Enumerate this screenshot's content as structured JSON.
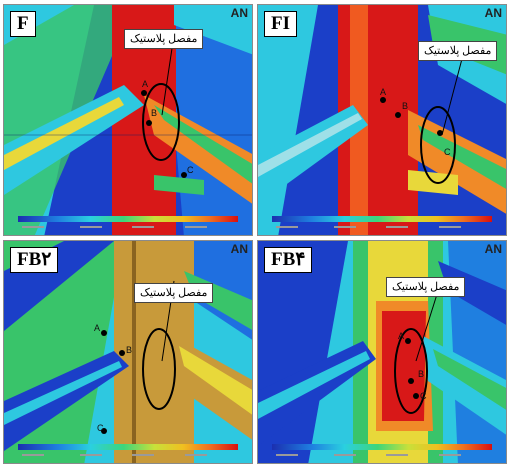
{
  "panels": [
    {
      "id": "F",
      "tag": "F",
      "callout": "مفصل پلاستیک",
      "points": [
        "A",
        "B",
        "C"
      ]
    },
    {
      "id": "FI",
      "tag": "FI",
      "callout": "مفصل پلاستیک",
      "points": [
        "A",
        "B",
        "C"
      ]
    },
    {
      "id": "FB2",
      "tag": "FB۲",
      "callout": "مفصل پلاستیک",
      "points": [
        "A",
        "B",
        "C"
      ]
    },
    {
      "id": "FB4",
      "tag": "FB۴",
      "callout": "مفصل پلاستیک",
      "points": [
        "A",
        "B",
        "C"
      ]
    }
  ],
  "software_logo": "AN",
  "colors": {
    "blue": "#1b3fc8",
    "cyan": "#2ec8e0",
    "green": "#39c46a",
    "yellow": "#e8d83a",
    "orange": "#f08a28",
    "red": "#d81818",
    "tan": "#c89a3a"
  }
}
